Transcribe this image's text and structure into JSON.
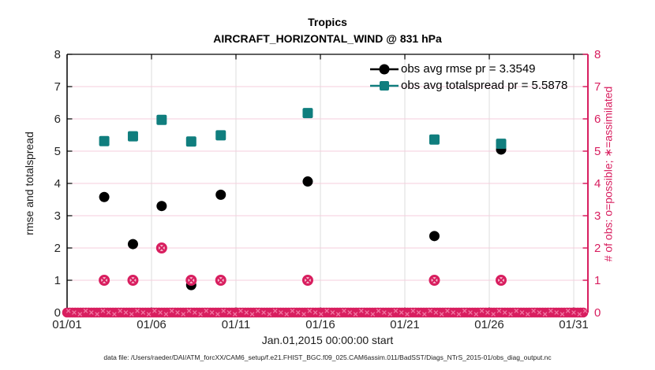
{
  "figure": {
    "title": "Tropics",
    "subtitle": "AIRCRAFT_HORIZONTAL_WIND @ 831 hPa",
    "xlabel": "Jan.01,2015 00:00:00 start",
    "left_ylabel": "rmse and totalspread",
    "right_ylabel": "# of obs: o=possible; ∗=assimilated",
    "caption": "data file: /Users/raeder/DAI/ATM_forcXX/CAM6_setup/f.e21.FHIST_BGC.f09_025.CAM6assim.011/BadSST/Diags_NTrS_2015-01/obs_diag_output.nc"
  },
  "colors": {
    "rmse": "#000000",
    "totalspread": "#107E7E",
    "obs_count": "#D81E5F",
    "obs_count_fill": "#F5B8CD",
    "band_texture": "#F077A3",
    "h_grid": "#F5CEDC",
    "v_grid": "#DEDEDE",
    "axis_dark": "#1a1a1a",
    "tick_label": "#262626"
  },
  "legend": [
    {
      "label": "obs avg rmse pr = 3.3549",
      "marker": "circle",
      "series": "rmse"
    },
    {
      "label": "obs avg totalspread pr = 5.5878",
      "marker": "square",
      "series": "totalspread"
    }
  ],
  "chart_data": {
    "type": "scatter",
    "title": "Tropics",
    "subtitle": "AIRCRAFT_HORIZONTAL_WIND @ 831 hPa",
    "xlabel": "Jan.01,2015 00:00:00 start",
    "ylabel_left": "rmse and totalspread",
    "ylabel_right": "# of obs: o=possible; ∗=assimilated",
    "xlim_days": [
      1,
      31.84
    ],
    "ylim": [
      0,
      8
    ],
    "ylim_right": [
      0,
      8
    ],
    "grid": true,
    "legend_position": "top-right-inside",
    "x_ticks": [
      {
        "day": 1,
        "label": "01/01"
      },
      {
        "day": 6,
        "label": "01/06"
      },
      {
        "day": 11,
        "label": "01/11"
      },
      {
        "day": 16,
        "label": "01/16"
      },
      {
        "day": 21,
        "label": "01/21"
      },
      {
        "day": 26,
        "label": "01/26"
      },
      {
        "day": 31,
        "label": "01/31"
      }
    ],
    "y_ticks": [
      0,
      1,
      2,
      3,
      4,
      5,
      6,
      7,
      8
    ],
    "series": [
      {
        "name": "obs avg rmse pr = 3.3549",
        "axis": "left",
        "marker": "filled-circle",
        "color": "#000000",
        "points": [
          [
            3.2,
            3.58
          ],
          [
            4.9,
            2.12
          ],
          [
            6.6,
            3.3
          ],
          [
            8.35,
            0.85
          ],
          [
            10.1,
            3.65
          ],
          [
            15.25,
            4.06
          ],
          [
            22.75,
            2.37
          ],
          [
            26.7,
            5.05
          ]
        ]
      },
      {
        "name": "obs avg totalspread pr = 5.5878",
        "axis": "left",
        "marker": "filled-square",
        "color": "#107E7E",
        "points": [
          [
            3.2,
            5.31
          ],
          [
            4.9,
            5.46
          ],
          [
            6.6,
            5.97
          ],
          [
            8.35,
            5.3
          ],
          [
            10.1,
            5.49
          ],
          [
            15.25,
            6.18
          ],
          [
            22.75,
            5.36
          ],
          [
            26.7,
            5.23
          ]
        ]
      },
      {
        "name": "# of obs (o=possible, x=assimilated)",
        "axis": "right",
        "marker": "circle-x",
        "color": "#D81E5F",
        "points": [
          [
            3.2,
            1
          ],
          [
            4.9,
            1
          ],
          [
            6.6,
            2
          ],
          [
            8.35,
            1
          ],
          [
            10.1,
            1
          ],
          [
            15.25,
            1
          ],
          [
            22.75,
            1
          ],
          [
            26.7,
            1
          ]
        ]
      },
      {
        "name": "# of obs zero baseline band",
        "axis": "right",
        "marker": "circle-x-band",
        "color": "#D81E5F",
        "band": {
          "from_day": 1,
          "to_day": 31.7,
          "value": 0
        }
      }
    ]
  }
}
